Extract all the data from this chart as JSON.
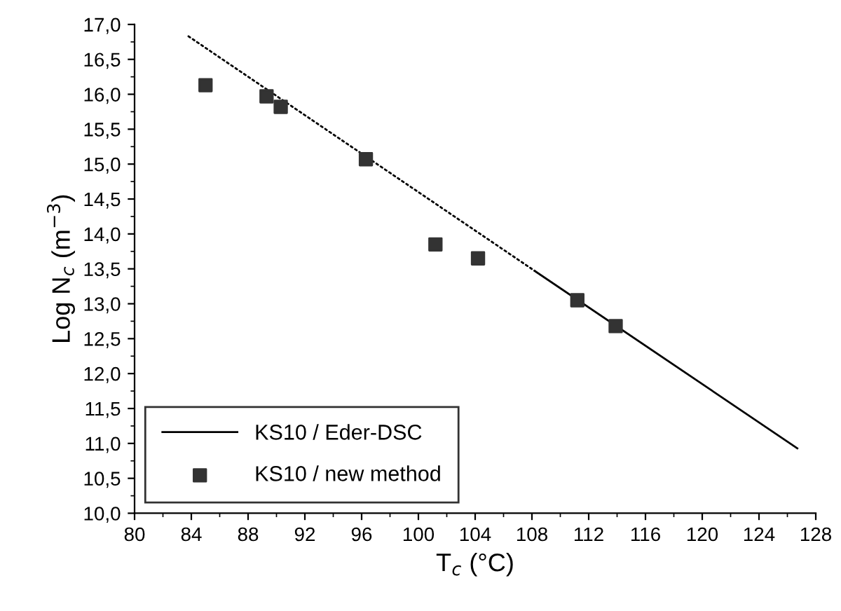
{
  "chart_data": {
    "type": "line",
    "xlabel": "T$_{c}$ (°C)",
    "ylabel": "Log N$_{c}$ (m$^{−3}$)",
    "xlim": [
      80,
      128
    ],
    "xticks": [
      80,
      84,
      88,
      92,
      96,
      100,
      104,
      108,
      112,
      116,
      120,
      124,
      128
    ],
    "ylim": [
      10,
      17
    ],
    "yticks": [
      {
        "value": 10,
        "label": "10,0"
      },
      {
        "value": 10.5,
        "label": "10,5"
      },
      {
        "value": 11,
        "label": "11,0"
      },
      {
        "value": 11.5,
        "label": "11,5"
      },
      {
        "value": 12,
        "label": "12,0"
      },
      {
        "value": 12.5,
        "label": "12,5"
      },
      {
        "value": 13,
        "label": "13,0"
      },
      {
        "value": 13.5,
        "label": "13,5"
      },
      {
        "value": 14,
        "label": "14,0"
      },
      {
        "value": 14.5,
        "label": "14,5"
      },
      {
        "value": 15,
        "label": "15,0"
      },
      {
        "value": 15.5,
        "label": "15,5"
      },
      {
        "value": 16,
        "label": "16,0"
      },
      {
        "value": 16.5,
        "label": "16,5"
      },
      {
        "value": 17,
        "label": "17,0"
      }
    ],
    "legend": "bottom left",
    "grid": false,
    "series": [
      {
        "name": "KS10 / Eder-DSC",
        "color": "#000000",
        "line_style": "solid",
        "x": [
          108.2,
          126.7
        ],
        "values": [
          13.47,
          10.93
        ]
      },
      {
        "color": "#000000",
        "line_style": "dotted",
        "x": [
          83.8,
          108.2
        ],
        "values": [
          16.83,
          13.47
        ]
      },
      {
        "type": "scatter",
        "name": "KS10 / new method",
        "color": "#333333",
        "marker": "square",
        "x": [
          85.0,
          89.3,
          90.3,
          96.3,
          101.2,
          104.2,
          111.2,
          113.9
        ],
        "values": [
          16.13,
          15.97,
          15.82,
          15.07,
          13.85,
          13.65,
          13.05,
          12.68
        ]
      }
    ]
  }
}
